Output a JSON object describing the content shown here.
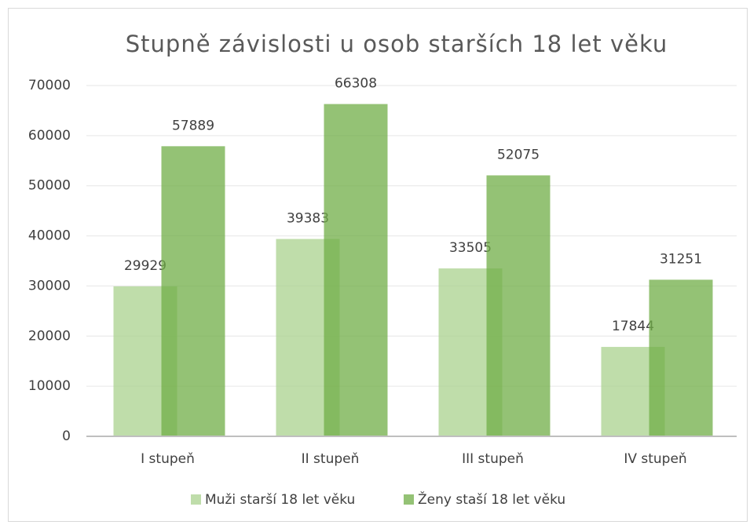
{
  "chart_data": {
    "type": "bar",
    "title": "Stupně závislosti u osob starších 18 let věku",
    "categories": [
      "I stupeň",
      "II stupeň",
      "III stupeň",
      "IV stupeň"
    ],
    "series": [
      {
        "name": "Muži starší 18 let věku",
        "color": "#a9d18e",
        "values": [
          29929,
          39383,
          33505,
          17844
        ]
      },
      {
        "name": "Ženy staší 18 let věku",
        "color": "#70ad47",
        "values": [
          57889,
          66308,
          52075,
          31251
        ]
      }
    ],
    "ylim": [
      0,
      70000
    ],
    "yticks": [
      0,
      10000,
      20000,
      30000,
      40000,
      50000,
      60000,
      70000
    ],
    "grid": true,
    "legend": "bottom"
  }
}
